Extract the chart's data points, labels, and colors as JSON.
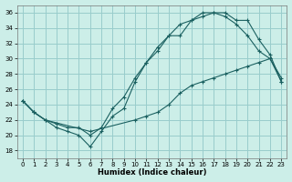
{
  "xlabel": "Humidex (Indice chaleur)",
  "background_color": "#cceee8",
  "grid_color": "#99cccc",
  "line_color": "#1a6060",
  "xlim": [
    -0.5,
    23.5
  ],
  "ylim": [
    17,
    37
  ],
  "xticks": [
    0,
    1,
    2,
    3,
    4,
    5,
    6,
    7,
    8,
    9,
    10,
    11,
    12,
    13,
    14,
    15,
    16,
    17,
    18,
    19,
    20,
    21,
    22,
    23
  ],
  "yticks": [
    18,
    20,
    22,
    24,
    26,
    28,
    30,
    32,
    34,
    36
  ],
  "line1_x": [
    0,
    1,
    2,
    3,
    4,
    5,
    6,
    7,
    8,
    9,
    10,
    11,
    12,
    13,
    14,
    15,
    16,
    17,
    18,
    19,
    20,
    21,
    22,
    23
  ],
  "line1_y": [
    24.5,
    23.0,
    22.0,
    21.0,
    20.5,
    20.0,
    18.5,
    20.5,
    22.5,
    23.5,
    27.0,
    29.5,
    31.5,
    33.0,
    33.0,
    35.0,
    36.0,
    36.0,
    36.0,
    35.0,
    35.0,
    32.5,
    30.5,
    27.0
  ],
  "line2_x": [
    0,
    1,
    2,
    3,
    4,
    5,
    6,
    7,
    8,
    9,
    10,
    11,
    12,
    13,
    14,
    15,
    16,
    17,
    18,
    19,
    20,
    21,
    22,
    23
  ],
  "line2_y": [
    24.5,
    23.0,
    22.0,
    21.5,
    21.0,
    21.0,
    20.0,
    21.0,
    23.5,
    25.0,
    27.5,
    29.5,
    31.0,
    33.0,
    34.5,
    35.0,
    35.5,
    36.0,
    35.5,
    34.5,
    33.0,
    31.0,
    30.0,
    27.0
  ],
  "line3_x": [
    0,
    1,
    2,
    6,
    10,
    11,
    12,
    13,
    14,
    15,
    16,
    17,
    18,
    19,
    20,
    21,
    22,
    23
  ],
  "line3_y": [
    24.5,
    23.0,
    22.0,
    20.5,
    22.0,
    22.5,
    23.0,
    24.0,
    25.5,
    26.5,
    27.0,
    27.5,
    28.0,
    28.5,
    29.0,
    29.5,
    30.0,
    27.5
  ]
}
